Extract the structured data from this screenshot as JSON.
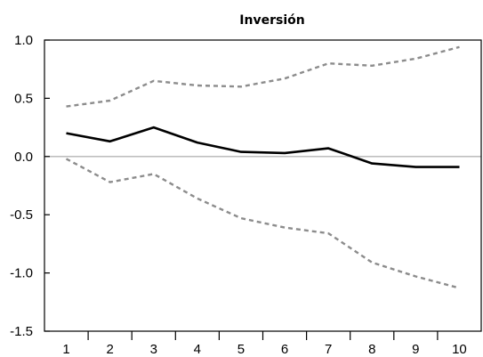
{
  "chart_data": {
    "type": "line",
    "title": "Inversión",
    "xlabel": "",
    "ylabel": "",
    "categories": [
      "1",
      "2",
      "3",
      "4",
      "5",
      "6",
      "7",
      "8",
      "9",
      "10"
    ],
    "x": [
      1,
      2,
      3,
      4,
      5,
      6,
      7,
      8,
      9,
      10
    ],
    "ylim": [
      -1.5,
      1.0
    ],
    "yticks": [
      "1.0",
      "0.5",
      "0.0",
      "-0.5",
      "-1.0",
      "-1.5"
    ],
    "ytick_values": [
      1.0,
      0.5,
      0.0,
      -0.5,
      -1.0,
      -1.5
    ],
    "zero_line": true,
    "grid": false,
    "series": [
      {
        "style": "solid",
        "color": "#000000",
        "values": [
          0.2,
          0.13,
          0.25,
          0.12,
          0.04,
          0.03,
          0.07,
          -0.06,
          -0.09,
          -0.09
        ]
      },
      {
        "style": "dashed",
        "color": "#8c8c8c",
        "values": [
          0.43,
          0.48,
          0.65,
          0.61,
          0.6,
          0.67,
          0.8,
          0.78,
          0.84,
          0.94
        ]
      },
      {
        "style": "dashed",
        "color": "#8c8c8c",
        "values": [
          -0.02,
          -0.22,
          -0.15,
          -0.36,
          -0.53,
          -0.61,
          -0.66,
          -0.91,
          -1.03,
          -1.13
        ]
      }
    ],
    "colors": {
      "zero_line": "#b4b4b4",
      "axes": "#000000"
    }
  }
}
